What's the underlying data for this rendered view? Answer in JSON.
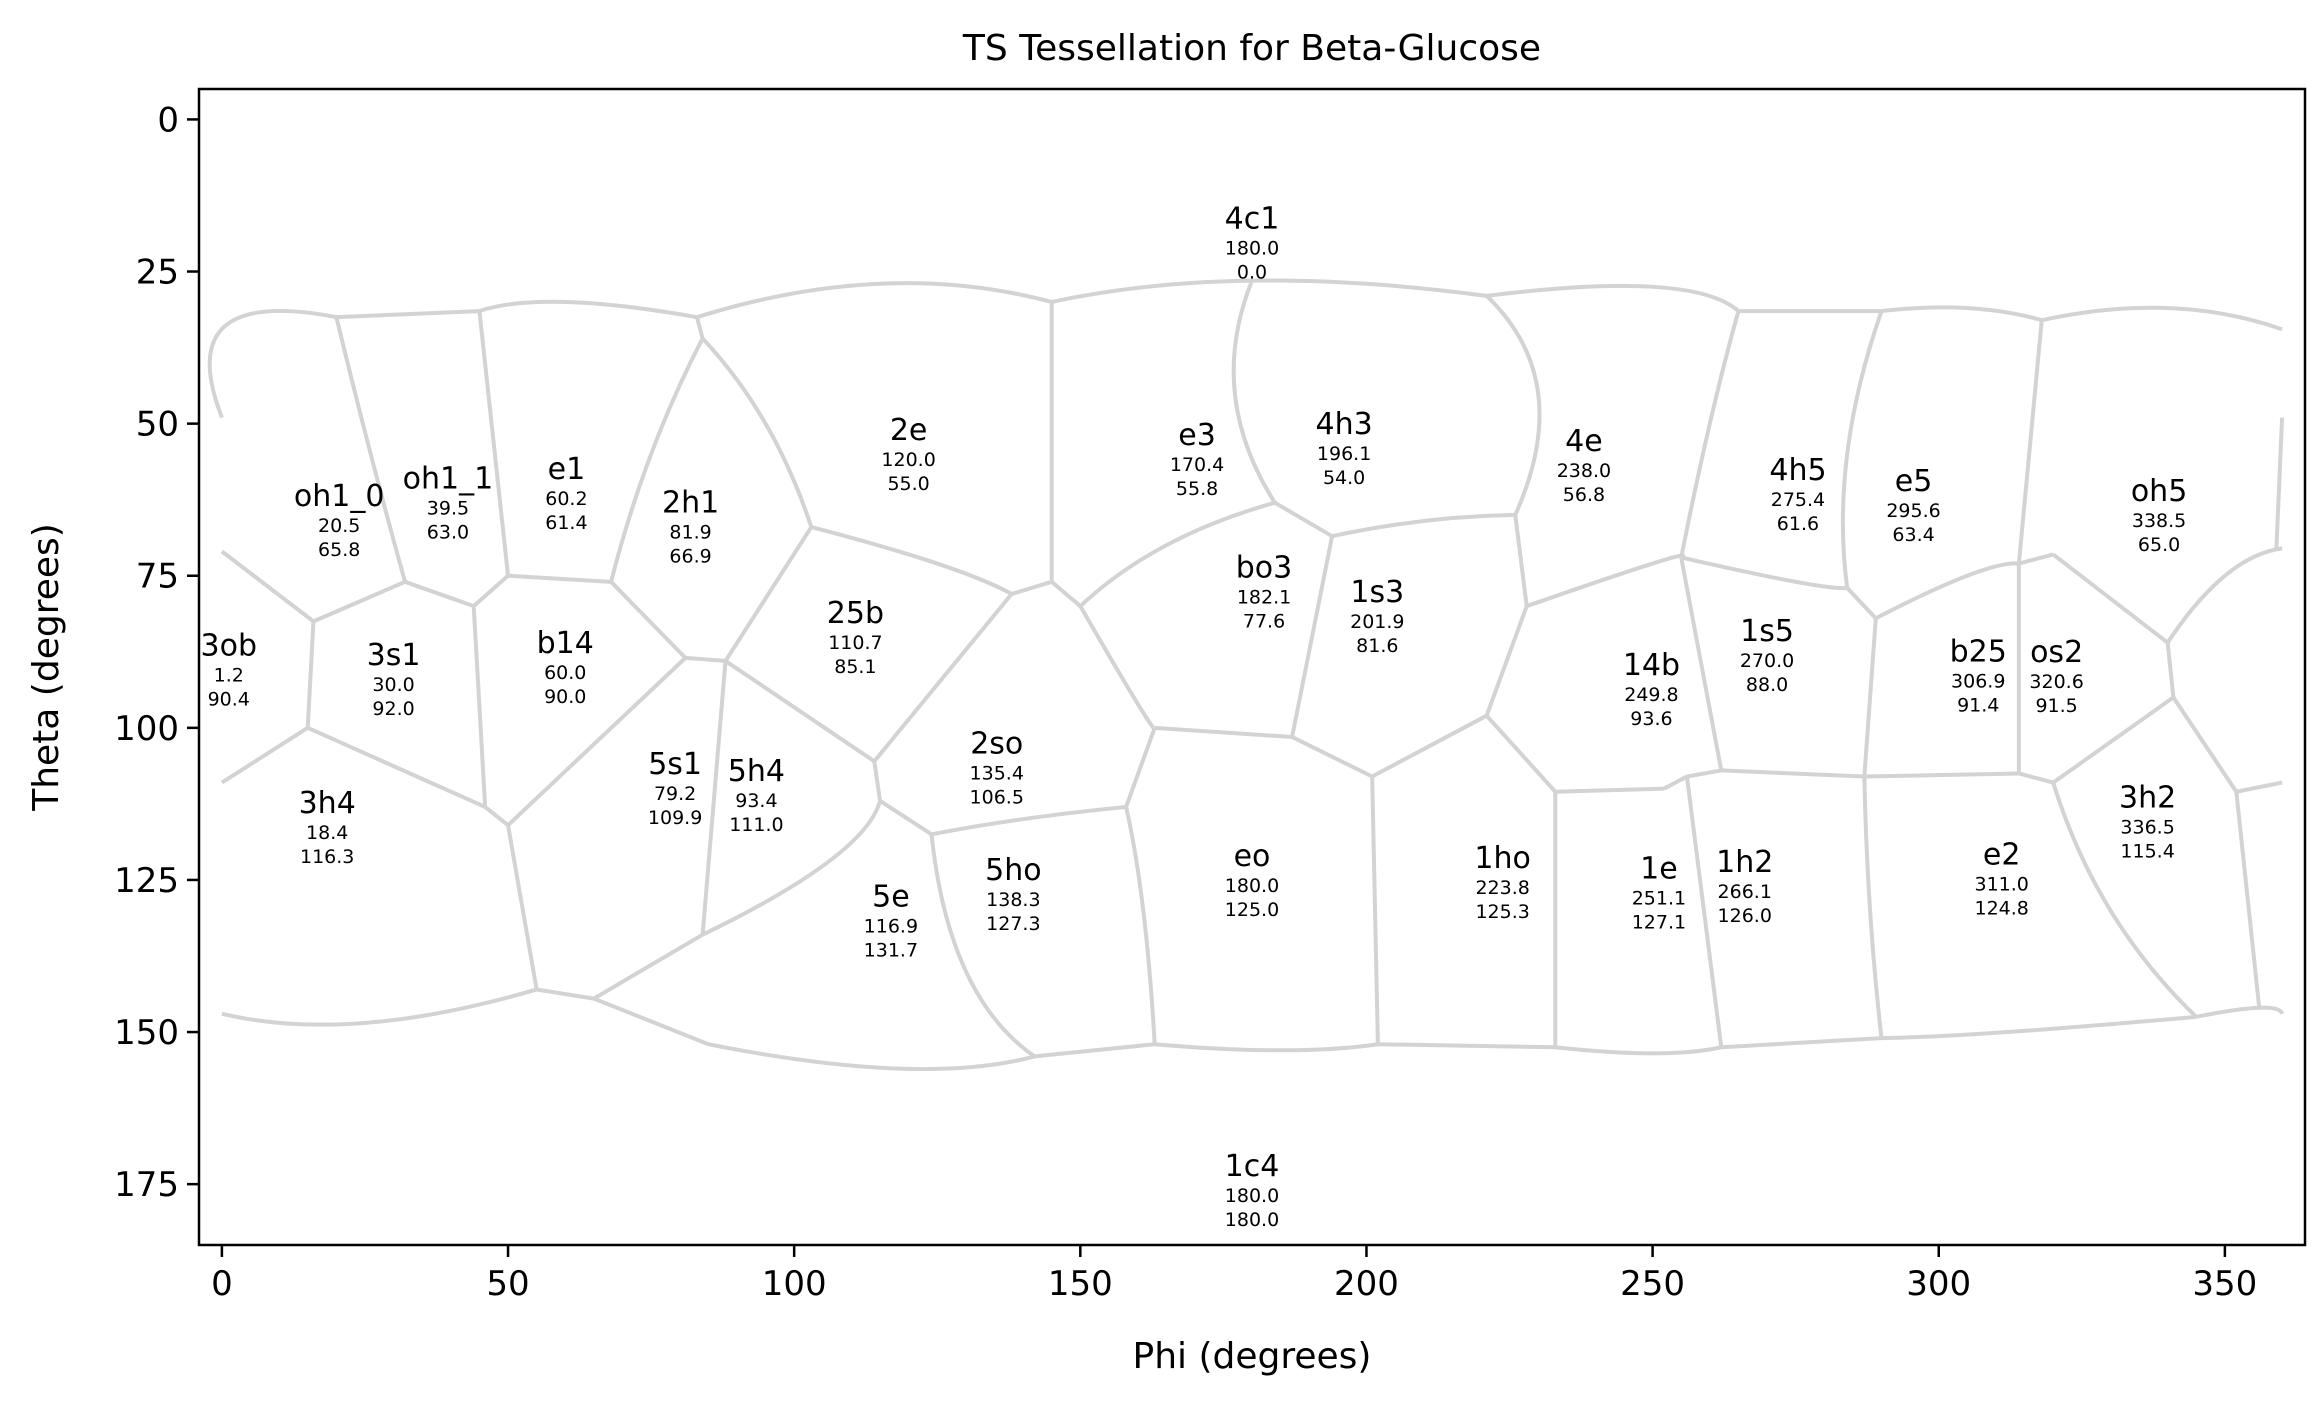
{
  "chart_data": {
    "type": "scatter",
    "title": "TS Tessellation for Beta-Glucose",
    "xlabel": "Phi (degrees)",
    "ylabel": "Theta (degrees)",
    "xlim": [
      -4,
      364
    ],
    "ylim": [
      185,
      -5
    ],
    "y_inverted": true,
    "xticks": [
      "0",
      "50",
      "100",
      "150",
      "200",
      "250",
      "300",
      "350"
    ],
    "xtick_values": [
      0,
      50,
      100,
      150,
      200,
      250,
      300,
      350
    ],
    "yticks": [
      "0",
      "25",
      "50",
      "75",
      "100",
      "125",
      "150",
      "175"
    ],
    "ytick_values": [
      0,
      25,
      50,
      75,
      100,
      125,
      150,
      175
    ],
    "grid": false,
    "tessellation_color": "#d3d3d3",
    "points": [
      {
        "name": "4c1",
        "phi_label": "180.0",
        "theta_label": "0.0",
        "phi": 180.0,
        "theta": 0.0,
        "label_theta": 20.2
      },
      {
        "name": "1c4",
        "phi_label": "180.0",
        "theta_label": "180.0",
        "phi": 180.0,
        "theta": 180.0,
        "label_theta": 176.0
      },
      {
        "name": "oh1_0",
        "phi_label": "20.5",
        "theta_label": "65.8",
        "phi": 20.5,
        "theta": 65.8
      },
      {
        "name": "oh1_1",
        "phi_label": "39.5",
        "theta_label": "63.0",
        "phi": 39.5,
        "theta": 63.0
      },
      {
        "name": "e1",
        "phi_label": "60.2",
        "theta_label": "61.4",
        "phi": 60.2,
        "theta": 61.4
      },
      {
        "name": "2h1",
        "phi_label": "81.9",
        "theta_label": "66.9",
        "phi": 81.9,
        "theta": 66.9
      },
      {
        "name": "2e",
        "phi_label": "120.0",
        "theta_label": "55.0",
        "phi": 120.0,
        "theta": 55.0
      },
      {
        "name": "e3",
        "phi_label": "170.4",
        "theta_label": "55.8",
        "phi": 170.4,
        "theta": 55.8
      },
      {
        "name": "4h3",
        "phi_label": "196.1",
        "theta_label": "54.0",
        "phi": 196.1,
        "theta": 54.0
      },
      {
        "name": "4e",
        "phi_label": "238.0",
        "theta_label": "56.8",
        "phi": 238.0,
        "theta": 56.8
      },
      {
        "name": "4h5",
        "phi_label": "275.4",
        "theta_label": "61.6",
        "phi": 275.4,
        "theta": 61.6
      },
      {
        "name": "e5",
        "phi_label": "295.6",
        "theta_label": "63.4",
        "phi": 295.6,
        "theta": 63.4
      },
      {
        "name": "oh5",
        "phi_label": "338.5",
        "theta_label": "65.0",
        "phi": 338.5,
        "theta": 65.0
      },
      {
        "name": "3ob",
        "phi_label": "1.2",
        "theta_label": "90.4",
        "phi": 1.2,
        "theta": 90.4
      },
      {
        "name": "3s1",
        "phi_label": "30.0",
        "theta_label": "92.0",
        "phi": 30.0,
        "theta": 92.0
      },
      {
        "name": "b14",
        "phi_label": "60.0",
        "theta_label": "90.0",
        "phi": 60.0,
        "theta": 90.0
      },
      {
        "name": "25b",
        "phi_label": "110.7",
        "theta_label": "85.1",
        "phi": 110.7,
        "theta": 85.1
      },
      {
        "name": "bo3",
        "phi_label": "182.1",
        "theta_label": "77.6",
        "phi": 182.1,
        "theta": 77.6
      },
      {
        "name": "1s3",
        "phi_label": "201.9",
        "theta_label": "81.6",
        "phi": 201.9,
        "theta": 81.6
      },
      {
        "name": "14b",
        "phi_label": "249.8",
        "theta_label": "93.6",
        "phi": 249.8,
        "theta": 93.6
      },
      {
        "name": "1s5",
        "phi_label": "270.0",
        "theta_label": "88.0",
        "phi": 270.0,
        "theta": 88.0
      },
      {
        "name": "b25",
        "phi_label": "306.9",
        "theta_label": "91.4",
        "phi": 306.9,
        "theta": 91.4
      },
      {
        "name": "os2",
        "phi_label": "320.6",
        "theta_label": "91.5",
        "phi": 320.6,
        "theta": 91.5
      },
      {
        "name": "2so",
        "phi_label": "135.4",
        "theta_label": "106.5",
        "phi": 135.4,
        "theta": 106.5
      },
      {
        "name": "5s1",
        "phi_label": "79.2",
        "theta_label": "109.9",
        "phi": 79.2,
        "theta": 109.9
      },
      {
        "name": "5h4",
        "phi_label": "93.4",
        "theta_label": "111.0",
        "phi": 93.4,
        "theta": 111.0
      },
      {
        "name": "3h4",
        "phi_label": "18.4",
        "theta_label": "116.3",
        "phi": 18.4,
        "theta": 116.3
      },
      {
        "name": "5e",
        "phi_label": "116.9",
        "theta_label": "131.7",
        "phi": 116.9,
        "theta": 131.7
      },
      {
        "name": "5ho",
        "phi_label": "138.3",
        "theta_label": "127.3",
        "phi": 138.3,
        "theta": 127.3
      },
      {
        "name": "eo",
        "phi_label": "180.0",
        "theta_label": "125.0",
        "phi": 180.0,
        "theta": 125.0
      },
      {
        "name": "1ho",
        "phi_label": "223.8",
        "theta_label": "125.3",
        "phi": 223.8,
        "theta": 125.3
      },
      {
        "name": "1e",
        "phi_label": "251.1",
        "theta_label": "127.1",
        "phi": 251.1,
        "theta": 127.1
      },
      {
        "name": "1h2",
        "phi_label": "266.1",
        "theta_label": "126.0",
        "phi": 266.1,
        "theta": 126.0
      },
      {
        "name": "e2",
        "phi_label": "311.0",
        "theta_label": "124.8",
        "phi": 311.0,
        "theta": 124.8
      },
      {
        "name": "3h2",
        "phi_label": "336.5",
        "theta_label": "115.4",
        "phi": 336.5,
        "theta": 115.4
      }
    ],
    "edges": [
      [
        [
          0,
          49
        ],
        [
          0.5,
          34
        ],
        [
          20,
          32.5
        ]
      ],
      [
        [
          20,
          32.5
        ],
        [
          45,
          31.5
        ]
      ],
      [
        [
          45,
          31.5
        ],
        [
          60,
          30
        ],
        [
          83,
          32.5
        ]
      ],
      [
        [
          83,
          32.5
        ],
        [
          115,
          27
        ],
        [
          145,
          30
        ]
      ],
      [
        [
          145,
          30
        ],
        [
          180,
          26.5
        ],
        [
          221,
          29
        ]
      ],
      [
        [
          221,
          29
        ],
        [
          250,
          27.5
        ],
        [
          265,
          31.5
        ]
      ],
      [
        [
          265,
          31.5
        ],
        [
          290,
          31.5
        ]
      ],
      [
        [
          290,
          31.5
        ],
        [
          305,
          31
        ],
        [
          318,
          33
        ]
      ],
      [
        [
          318,
          33
        ],
        [
          340,
          31
        ],
        [
          360,
          34.5
        ]
      ],
      [
        [
          0,
          147
        ],
        [
          25,
          148.5
        ],
        [
          55,
          143
        ]
      ],
      [
        [
          55,
          143
        ],
        [
          65,
          144.5
        ]
      ],
      [
        [
          65,
          144.5
        ],
        [
          85,
          152
        ],
        [
          118,
          156
        ],
        [
          142,
          154
        ]
      ],
      [
        [
          142,
          154
        ],
        [
          163,
          152
        ]
      ],
      [
        [
          163,
          152
        ],
        [
          185,
          153
        ],
        [
          202,
          152
        ]
      ],
      [
        [
          202,
          152
        ],
        [
          233,
          152.5
        ]
      ],
      [
        [
          233,
          152.5
        ],
        [
          250,
          153.5
        ],
        [
          262,
          152.5
        ]
      ],
      [
        [
          262,
          152.5
        ],
        [
          290,
          151
        ],
        [
          312,
          150
        ],
        [
          345,
          147.5
        ]
      ],
      [
        [
          345,
          147.5
        ],
        [
          356,
          146
        ],
        [
          360,
          147
        ]
      ],
      [
        [
          20,
          32.5
        ],
        [
          26,
          55
        ],
        [
          32,
          76
        ]
      ],
      [
        [
          32,
          76
        ],
        [
          16,
          82.5
        ]
      ],
      [
        [
          0,
          71
        ],
        [
          16,
          82.5
        ]
      ],
      [
        [
          16,
          82.5
        ],
        [
          15,
          100
        ]
      ],
      [
        [
          15,
          100
        ],
        [
          0,
          109
        ]
      ],
      [
        [
          15,
          100
        ],
        [
          46,
          113
        ]
      ],
      [
        [
          32,
          76
        ],
        [
          44,
          80
        ]
      ],
      [
        [
          44,
          80
        ],
        [
          46,
          113
        ]
      ],
      [
        [
          45,
          31.5
        ],
        [
          50,
          75
        ]
      ],
      [
        [
          50,
          75
        ],
        [
          68,
          76
        ]
      ],
      [
        [
          44,
          80
        ],
        [
          50,
          75
        ]
      ],
      [
        [
          68,
          76
        ],
        [
          81,
          88.5
        ]
      ],
      [
        [
          46,
          113
        ],
        [
          50,
          116
        ]
      ],
      [
        [
          50,
          116
        ],
        [
          81,
          88.5
        ]
      ],
      [
        [
          50,
          116
        ],
        [
          55,
          143
        ]
      ],
      [
        [
          68,
          76
        ],
        [
          75,
          55
        ],
        [
          84,
          36
        ]
      ],
      [
        [
          84,
          36
        ],
        [
          83,
          32.5
        ]
      ],
      [
        [
          84,
          36
        ],
        [
          95,
          50
        ],
        [
          103,
          67
        ]
      ],
      [
        [
          103,
          67
        ],
        [
          125,
          73
        ],
        [
          138,
          78
        ]
      ],
      [
        [
          138,
          78
        ],
        [
          145,
          76
        ]
      ],
      [
        [
          145,
          76
        ],
        [
          145,
          30
        ]
      ],
      [
        [
          81,
          88.5
        ],
        [
          88,
          89
        ]
      ],
      [
        [
          88,
          89
        ],
        [
          103,
          67
        ]
      ],
      [
        [
          88,
          89
        ],
        [
          114,
          105.5
        ]
      ],
      [
        [
          114,
          105.5
        ],
        [
          138,
          78
        ]
      ],
      [
        [
          88,
          89
        ],
        [
          84,
          134
        ]
      ],
      [
        [
          84,
          134
        ],
        [
          106,
          122
        ],
        [
          115,
          112
        ]
      ],
      [
        [
          114,
          105.5
        ],
        [
          115,
          112
        ]
      ],
      [
        [
          115,
          112
        ],
        [
          124,
          117.5
        ]
      ],
      [
        [
          124,
          117.5
        ],
        [
          140,
          115
        ],
        [
          158,
          113
        ]
      ],
      [
        [
          124,
          117.5
        ],
        [
          130,
          140
        ],
        [
          142,
          154
        ]
      ],
      [
        [
          65,
          144.5
        ],
        [
          84,
          134
        ]
      ],
      [
        [
          145,
          76
        ],
        [
          150,
          80
        ]
      ],
      [
        [
          150,
          80
        ],
        [
          160,
          96
        ],
        [
          163,
          100
        ]
      ],
      [
        [
          163,
          100
        ],
        [
          158,
          113
        ]
      ],
      [
        [
          158,
          113
        ],
        [
          161,
          130
        ],
        [
          163,
          152
        ]
      ],
      [
        [
          163,
          100
        ],
        [
          187,
          101.5
        ]
      ],
      [
        [
          150,
          80
        ],
        [
          165,
          70
        ],
        [
          184,
          63
        ]
      ],
      [
        [
          184,
          63
        ],
        [
          177,
          45
        ],
        [
          180,
          26.5
        ]
      ],
      [
        [
          184,
          63
        ],
        [
          194,
          68.5
        ]
      ],
      [
        [
          194,
          68.5
        ],
        [
          187,
          101.5
        ]
      ],
      [
        [
          194,
          68.5
        ],
        [
          210,
          66
        ],
        [
          226,
          65
        ]
      ],
      [
        [
          226,
          65
        ],
        [
          230,
          45
        ],
        [
          221,
          29
        ]
      ],
      [
        [
          226,
          65
        ],
        [
          228,
          80
        ]
      ],
      [
        [
          228,
          80
        ],
        [
          250,
          73
        ],
        [
          255,
          72
        ]
      ],
      [
        [
          255,
          72
        ],
        [
          260,
          50
        ],
        [
          265,
          31.5
        ]
      ],
      [
        [
          187,
          101.5
        ],
        [
          201,
          108
        ]
      ],
      [
        [
          201,
          108
        ],
        [
          221,
          98
        ]
      ],
      [
        [
          201,
          108
        ],
        [
          202,
          152
        ]
      ],
      [
        [
          221,
          98
        ],
        [
          233,
          110.5
        ]
      ],
      [
        [
          233,
          110.5
        ],
        [
          252,
          110
        ]
      ],
      [
        [
          233,
          110.5
        ],
        [
          233,
          152.5
        ]
      ],
      [
        [
          252,
          110
        ],
        [
          256,
          108
        ]
      ],
      [
        [
          256,
          108
        ],
        [
          259,
          130
        ],
        [
          262,
          152.5
        ]
      ],
      [
        [
          221,
          98
        ],
        [
          228,
          80
        ]
      ],
      [
        [
          255,
          72
        ],
        [
          262,
          107
        ]
      ],
      [
        [
          262,
          107
        ],
        [
          256,
          108
        ]
      ],
      [
        [
          255,
          72
        ],
        [
          275,
          76
        ],
        [
          284,
          77
        ]
      ],
      [
        [
          284,
          77
        ],
        [
          284,
          55
        ],
        [
          290,
          31.5
        ]
      ],
      [
        [
          262,
          107
        ],
        [
          287,
          108
        ]
      ],
      [
        [
          284,
          77
        ],
        [
          289,
          82
        ]
      ],
      [
        [
          289,
          82
        ],
        [
          287,
          108
        ]
      ],
      [
        [
          287,
          108
        ],
        [
          288,
          130
        ],
        [
          290,
          151
        ]
      ],
      [
        [
          289,
          82
        ],
        [
          305,
          75
        ],
        [
          314,
          73
        ]
      ],
      [
        [
          314,
          73
        ],
        [
          318,
          33
        ]
      ],
      [
        [
          314,
          73
        ],
        [
          314,
          107.5
        ]
      ],
      [
        [
          287,
          108
        ],
        [
          314,
          107.5
        ]
      ],
      [
        [
          314,
          73
        ],
        [
          320,
          71.5
        ]
      ],
      [
        [
          320,
          71.5
        ],
        [
          340,
          86
        ]
      ],
      [
        [
          340,
          86
        ],
        [
          350,
          75
        ],
        [
          360,
          70.5
        ]
      ],
      [
        [
          360,
          49
        ],
        [
          359,
          70.5
        ]
      ],
      [
        [
          340,
          86
        ],
        [
          341,
          95
        ]
      ],
      [
        [
          341,
          95
        ],
        [
          320,
          109
        ]
      ],
      [
        [
          314,
          107.5
        ],
        [
          320,
          109
        ]
      ],
      [
        [
          320,
          109
        ],
        [
          330,
          130
        ],
        [
          345,
          147.5
        ]
      ],
      [
        [
          341,
          95
        ],
        [
          352,
          110.5
        ]
      ],
      [
        [
          352,
          110.5
        ],
        [
          360,
          109
        ]
      ],
      [
        [
          352,
          110.5
        ],
        [
          356,
          146
        ]
      ]
    ]
  }
}
